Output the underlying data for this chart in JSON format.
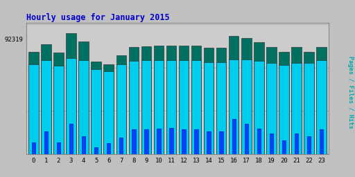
{
  "title": "Hourly usage for January 2015",
  "ylabel": "Pages / Files / Hits",
  "ytick_label": "92319",
  "hours": [
    0,
    1,
    2,
    3,
    4,
    5,
    6,
    7,
    8,
    9,
    10,
    11,
    12,
    13,
    14,
    15,
    16,
    17,
    18,
    19,
    20,
    21,
    22,
    23
  ],
  "hits": [
    0.82,
    0.88,
    0.815,
    0.97,
    0.9,
    0.74,
    0.72,
    0.79,
    0.86,
    0.865,
    0.87,
    0.87,
    0.87,
    0.87,
    0.85,
    0.85,
    0.945,
    0.93,
    0.895,
    0.855,
    0.82,
    0.855,
    0.82,
    0.86
  ],
  "files": [
    0.72,
    0.75,
    0.71,
    0.77,
    0.755,
    0.68,
    0.665,
    0.72,
    0.745,
    0.75,
    0.75,
    0.75,
    0.75,
    0.75,
    0.735,
    0.735,
    0.76,
    0.76,
    0.748,
    0.73,
    0.715,
    0.73,
    0.73,
    0.75
  ],
  "pages": [
    0.095,
    0.18,
    0.095,
    0.24,
    0.14,
    0.055,
    0.085,
    0.13,
    0.2,
    0.2,
    0.205,
    0.21,
    0.2,
    0.2,
    0.18,
    0.18,
    0.28,
    0.24,
    0.205,
    0.165,
    0.11,
    0.165,
    0.14,
    0.2
  ],
  "color_green": "#007060",
  "color_cyan": "#00ccee",
  "color_blue": "#0044ff",
  "bg_color": "#c0c0c0",
  "plot_bg": "#cccccc",
  "title_color": "#0000cc",
  "ylabel_color": "#00aaaa",
  "grid_color": "#aaaaaa",
  "figsize": [
    5.12,
    2.56
  ],
  "dpi": 100,
  "ylim_max": 1.05,
  "ytick_pos": 0.92
}
